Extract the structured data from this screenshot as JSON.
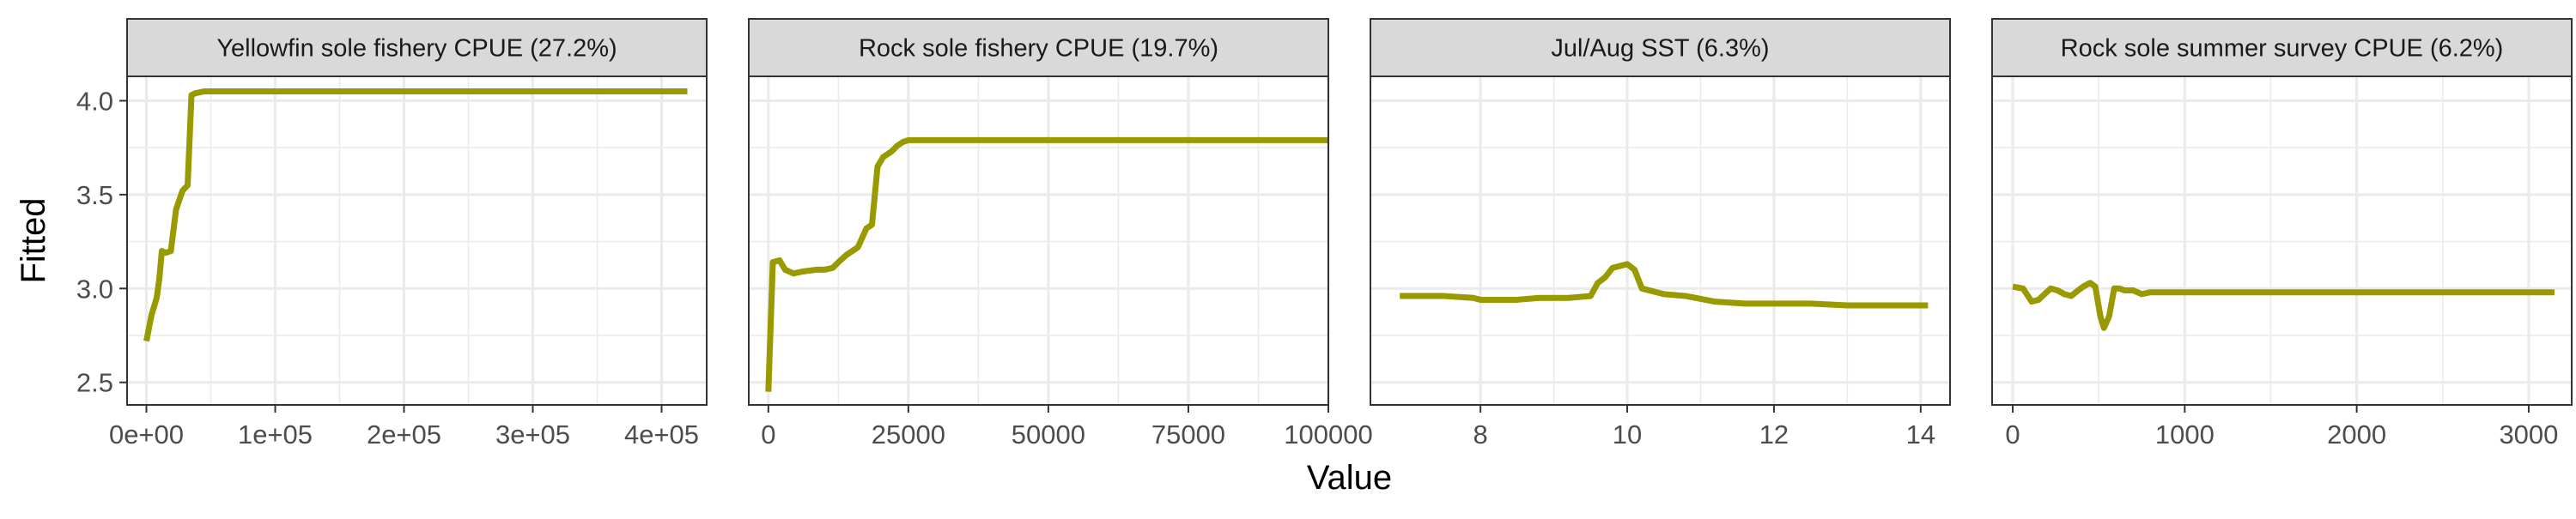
{
  "figure": {
    "xlabel": "Value",
    "ylabel": "Fitted",
    "ylim": [
      2.38,
      4.13
    ],
    "y_ticks": [
      2.5,
      3.0,
      3.5,
      4.0
    ],
    "y_tick_labels": [
      "2.5",
      "3.0",
      "3.5",
      "4.0"
    ],
    "line_color": "#999900",
    "panel_border_color": "#333333",
    "strip_fill": "#d9d9d9",
    "grid_color": "#ebebeb"
  },
  "chart_data": [
    {
      "type": "line",
      "title": "Yellowfin sole fishery CPUE (27.2%)",
      "xlim": [
        -15000,
        435000
      ],
      "x_ticks": [
        0,
        100000,
        200000,
        300000,
        400000
      ],
      "x_tick_labels": [
        "0e+00",
        "1e+05",
        "2e+05",
        "3e+05",
        "4e+05"
      ],
      "grid": true,
      "x": [
        0,
        4000,
        8000,
        10000,
        12000,
        15000,
        19000,
        23000,
        28000,
        32000,
        35000,
        38000,
        45000,
        100000,
        200000,
        300000,
        420000
      ],
      "y": [
        2.72,
        2.86,
        2.95,
        3.05,
        3.2,
        3.19,
        3.2,
        3.42,
        3.52,
        3.55,
        4.03,
        4.04,
        4.05,
        4.05,
        4.05,
        4.05,
        4.05
      ]
    },
    {
      "type": "line",
      "title": "Rock sole fishery CPUE (19.7%)",
      "xlim": [
        -3500,
        100000
      ],
      "x_ticks": [
        0,
        25000,
        50000,
        75000,
        100000
      ],
      "x_tick_labels": [
        "0",
        "25000",
        "50000",
        "75000",
        "100000"
      ],
      "grid": true,
      "x": [
        0,
        800,
        2000,
        3000,
        4500,
        6000,
        8500,
        10000,
        11500,
        12500,
        14000,
        16000,
        17500,
        18500,
        19500,
        20500,
        22000,
        23000,
        24000,
        25000,
        27000,
        35000,
        100000
      ],
      "y": [
        2.45,
        3.14,
        3.15,
        3.1,
        3.08,
        3.09,
        3.1,
        3.1,
        3.11,
        3.14,
        3.18,
        3.22,
        3.32,
        3.34,
        3.65,
        3.7,
        3.73,
        3.76,
        3.78,
        3.79,
        3.79,
        3.79,
        3.79
      ]
    },
    {
      "type": "line",
      "title": "Jul/Aug SST (6.3%)",
      "xlim": [
        6.5,
        14.4
      ],
      "x_ticks": [
        8,
        10,
        12,
        14
      ],
      "x_tick_labels": [
        "8",
        "10",
        "12",
        "14"
      ],
      "grid": true,
      "x": [
        6.9,
        7.5,
        7.9,
        8.0,
        8.5,
        8.8,
        9.0,
        9.2,
        9.5,
        9.6,
        9.7,
        9.8,
        10.0,
        10.1,
        10.2,
        10.5,
        10.8,
        11.2,
        11.6,
        12.0,
        12.5,
        13.0,
        14.1
      ],
      "y": [
        2.96,
        2.96,
        2.95,
        2.94,
        2.94,
        2.95,
        2.95,
        2.95,
        2.96,
        3.03,
        3.06,
        3.11,
        3.13,
        3.1,
        3.0,
        2.97,
        2.96,
        2.93,
        2.92,
        2.92,
        2.92,
        2.91,
        2.91
      ]
    },
    {
      "type": "line",
      "title": "Rock sole summer survey CPUE (6.2%)",
      "xlim": [
        -120,
        3250
      ],
      "x_ticks": [
        0,
        1000,
        2000,
        3000
      ],
      "x_tick_labels": [
        "0",
        "1000",
        "2000",
        "3000"
      ],
      "grid": true,
      "x": [
        0,
        60,
        110,
        150,
        220,
        260,
        300,
        340,
        380,
        410,
        450,
        480,
        510,
        530,
        560,
        590,
        620,
        650,
        700,
        750,
        800,
        1500,
        2500,
        3150
      ],
      "y": [
        3.01,
        3.0,
        2.93,
        2.94,
        3.0,
        2.99,
        2.97,
        2.96,
        2.99,
        3.01,
        3.03,
        3.01,
        2.85,
        2.79,
        2.85,
        3.0,
        3.0,
        2.99,
        2.99,
        2.97,
        2.98,
        2.98,
        2.98,
        2.98
      ]
    }
  ]
}
